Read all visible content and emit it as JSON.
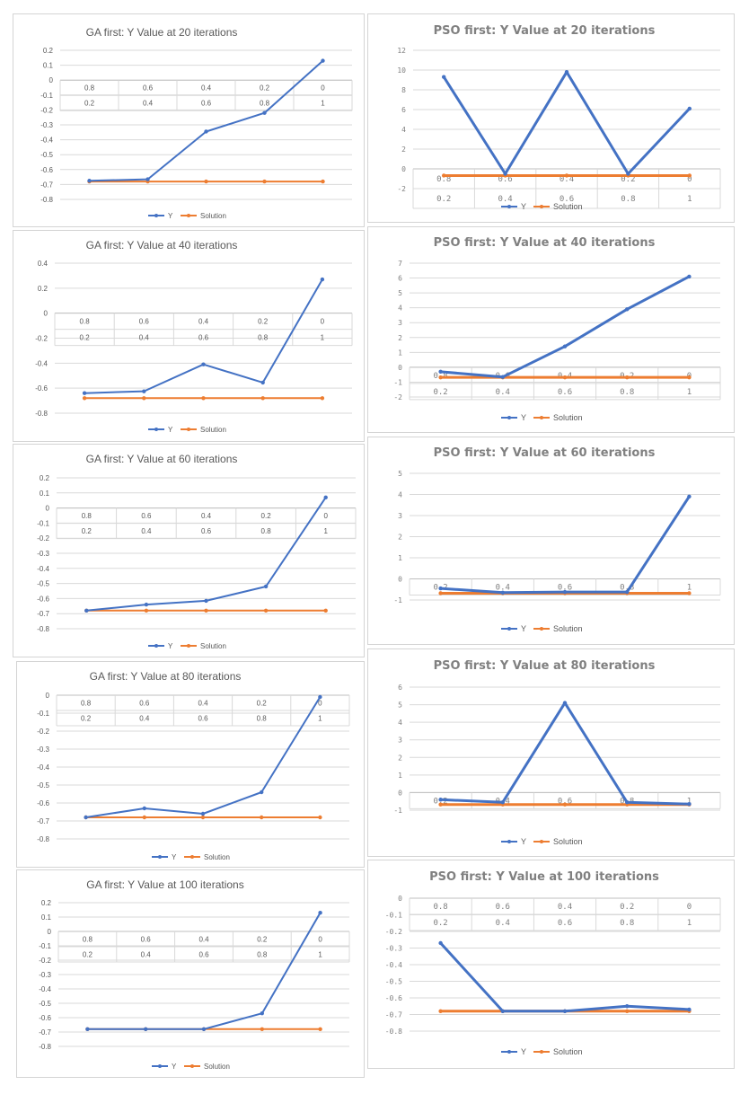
{
  "colors": {
    "y": "#4472C4",
    "solution": "#ED7D31",
    "grid": "#d9d9d9",
    "text": "#595959"
  },
  "legend": {
    "y": "Y",
    "solution": "Solution"
  },
  "chart_data": [
    {
      "id": "ga20",
      "type": "line",
      "title": "GA first: Y Value at 20 iterations",
      "categories": [
        [
          "0.8",
          "0.2"
        ],
        [
          "0.6",
          "0.4"
        ],
        [
          "0.4",
          "0.6"
        ],
        [
          "0.2",
          "0.8"
        ],
        [
          "0",
          "1"
        ]
      ],
      "ylim": [
        -0.8,
        0.2
      ],
      "yticks": [
        "0.2",
        "0.1",
        "0",
        "-0.1",
        "-0.2",
        "-0.3",
        "-0.4",
        "-0.5",
        "-0.6",
        "-0.7",
        "-0.8"
      ],
      "series": [
        {
          "name": "Y",
          "values": [
            -0.675,
            -0.665,
            -0.345,
            -0.22,
            0.13
          ]
        },
        {
          "name": "Solution",
          "values": [
            -0.68,
            -0.68,
            -0.68,
            -0.68,
            -0.68
          ]
        }
      ]
    },
    {
      "id": "pso20",
      "type": "line",
      "title": "PSO first: Y Value at 20 iterations",
      "categories": [
        [
          "0.8",
          "0.2"
        ],
        [
          "0.6",
          "0.4"
        ],
        [
          "0.4",
          "0.6"
        ],
        [
          "0.2",
          "0.8"
        ],
        [
          "0",
          "1"
        ]
      ],
      "ylim": [
        -2,
        12
      ],
      "yticks": [
        "12",
        "10",
        "8",
        "6",
        "4",
        "2",
        "0",
        "-2"
      ],
      "series": [
        {
          "name": "Y",
          "values": [
            9.3,
            -0.5,
            9.8,
            -0.5,
            6.1
          ]
        },
        {
          "name": "Solution",
          "values": [
            -0.68,
            -0.68,
            -0.68,
            -0.68,
            -0.68
          ]
        }
      ]
    },
    {
      "id": "ga40",
      "type": "line",
      "title": "GA first: Y Value at 40 iterations",
      "categories": [
        [
          "0.8",
          "0.2"
        ],
        [
          "0.6",
          "0.4"
        ],
        [
          "0.4",
          "0.6"
        ],
        [
          "0.2",
          "0.8"
        ],
        [
          "0",
          "1"
        ]
      ],
      "ylim": [
        -0.8,
        0.4
      ],
      "yticks": [
        "0.4",
        "0.2",
        "0",
        "-0.2",
        "-0.4",
        "-0.6",
        "-0.8"
      ],
      "series": [
        {
          "name": "Y",
          "values": [
            -0.64,
            -0.625,
            -0.41,
            -0.555,
            0.27
          ]
        },
        {
          "name": "Solution",
          "values": [
            -0.68,
            -0.68,
            -0.68,
            -0.68,
            -0.68
          ]
        }
      ]
    },
    {
      "id": "pso40",
      "type": "line",
      "title": "PSO first: Y Value at 40 iterations",
      "categories": [
        [
          "0.8",
          "0.2"
        ],
        [
          "0.6",
          "0.4"
        ],
        [
          "0.4",
          "0.6"
        ],
        [
          "0.2",
          "0.8"
        ],
        [
          "0",
          "1"
        ]
      ],
      "ylim": [
        -2,
        7
      ],
      "yticks": [
        "7",
        "6",
        "5",
        "4",
        "3",
        "2",
        "1",
        "0",
        "-1",
        "-2"
      ],
      "series": [
        {
          "name": "Y",
          "values": [
            -0.3,
            -0.65,
            1.4,
            3.9,
            6.1
          ]
        },
        {
          "name": "Solution",
          "values": [
            -0.68,
            -0.68,
            -0.68,
            -0.68,
            -0.68
          ]
        }
      ]
    },
    {
      "id": "ga60",
      "type": "line",
      "title": "GA first: Y Value at 60 iterations",
      "categories": [
        [
          "0.8",
          "0.2"
        ],
        [
          "0.6",
          "0.4"
        ],
        [
          "0.4",
          "0.6"
        ],
        [
          "0.2",
          "0.8"
        ],
        [
          "0",
          "1"
        ]
      ],
      "ylim": [
        -0.8,
        0.2
      ],
      "yticks": [
        "0.2",
        "0.1",
        "0",
        "-0.1",
        "-0.2",
        "-0.3",
        "-0.4",
        "-0.5",
        "-0.6",
        "-0.7",
        "-0.8"
      ],
      "series": [
        {
          "name": "Y",
          "values": [
            -0.68,
            -0.64,
            -0.615,
            -0.52,
            0.07
          ]
        },
        {
          "name": "Solution",
          "values": [
            -0.68,
            -0.68,
            -0.68,
            -0.68,
            -0.68
          ]
        }
      ]
    },
    {
      "id": "pso60",
      "type": "line",
      "title": "PSO first: Y Value at 60 iterations",
      "categories": [
        [
          "0.2"
        ],
        [
          "0.4"
        ],
        [
          "0.6"
        ],
        [
          "0.8"
        ],
        [
          "1"
        ]
      ],
      "ylim": [
        -1,
        5
      ],
      "yticks": [
        "5",
        "4",
        "3",
        "2",
        "1",
        "0",
        "-1"
      ],
      "series": [
        {
          "name": "Y",
          "values": [
            -0.45,
            -0.65,
            -0.62,
            -0.62,
            3.9
          ]
        },
        {
          "name": "Solution",
          "values": [
            -0.68,
            -0.68,
            -0.68,
            -0.68,
            -0.68
          ]
        }
      ]
    },
    {
      "id": "ga80",
      "type": "line",
      "title": "GA first: Y Value at 80 iterations",
      "categories": [
        [
          "0.8",
          "0.2"
        ],
        [
          "0.6",
          "0.4"
        ],
        [
          "0.4",
          "0.6"
        ],
        [
          "0.2",
          "0.8"
        ],
        [
          "0",
          "1"
        ]
      ],
      "ylim": [
        -0.8,
        0
      ],
      "yticks": [
        "0",
        "-0.1",
        "-0.2",
        "-0.3",
        "-0.4",
        "-0.5",
        "-0.6",
        "-0.7",
        "-0.8"
      ],
      "series": [
        {
          "name": "Y",
          "values": [
            -0.68,
            -0.63,
            -0.66,
            -0.54,
            -0.01
          ]
        },
        {
          "name": "Solution",
          "values": [
            -0.68,
            -0.68,
            -0.68,
            -0.68,
            -0.68
          ]
        }
      ]
    },
    {
      "id": "pso80",
      "type": "line",
      "title": "PSO first: Y Value at 80 iterations",
      "categories": [
        [
          "0.2"
        ],
        [
          "0.4"
        ],
        [
          "0.6"
        ],
        [
          "0.8"
        ],
        [
          "1"
        ]
      ],
      "ylim": [
        -1,
        6
      ],
      "yticks": [
        "6",
        "5",
        "4",
        "3",
        "2",
        "1",
        "0",
        "-1"
      ],
      "series": [
        {
          "name": "Y",
          "values": [
            -0.4,
            -0.55,
            5.1,
            -0.55,
            -0.65
          ]
        },
        {
          "name": "Solution",
          "values": [
            -0.68,
            -0.68,
            -0.68,
            -0.68,
            -0.68
          ]
        }
      ]
    },
    {
      "id": "ga100",
      "type": "line",
      "title": "GA first: Y Value at 100 iterations",
      "categories": [
        [
          "0.8",
          "0.2"
        ],
        [
          "0.6",
          "0.4"
        ],
        [
          "0.4",
          "0.6"
        ],
        [
          "0.2",
          "0.8"
        ],
        [
          "0",
          "1"
        ]
      ],
      "ylim": [
        -0.8,
        0.2
      ],
      "yticks": [
        "0.2",
        "0.1",
        "0",
        "-0.1",
        "-0.2",
        "-0.3",
        "-0.4",
        "-0.5",
        "-0.6",
        "-0.7",
        "-0.8"
      ],
      "series": [
        {
          "name": "Y",
          "values": [
            -0.68,
            -0.68,
            -0.68,
            -0.57,
            0.13
          ]
        },
        {
          "name": "Solution",
          "values": [
            -0.68,
            -0.68,
            -0.68,
            -0.68,
            -0.68
          ]
        }
      ]
    },
    {
      "id": "pso100",
      "type": "line",
      "title": "PSO first: Y Value at 100 iterations",
      "categories": [
        [
          "0.8",
          "0.2"
        ],
        [
          "0.6",
          "0.4"
        ],
        [
          "0.4",
          "0.6"
        ],
        [
          "0.2",
          "0.8"
        ],
        [
          "0",
          "1"
        ]
      ],
      "ylim": [
        -0.8,
        0
      ],
      "yticks": [
        "0",
        "-0.1",
        "-0.2",
        "-0.3",
        "-0.4",
        "-0.5",
        "-0.6",
        "-0.7",
        "-0.8"
      ],
      "series": [
        {
          "name": "Y",
          "values": [
            -0.27,
            -0.68,
            -0.68,
            -0.65,
            -0.67
          ]
        },
        {
          "name": "Solution",
          "values": [
            -0.68,
            -0.68,
            -0.68,
            -0.68,
            -0.68
          ]
        }
      ]
    }
  ]
}
